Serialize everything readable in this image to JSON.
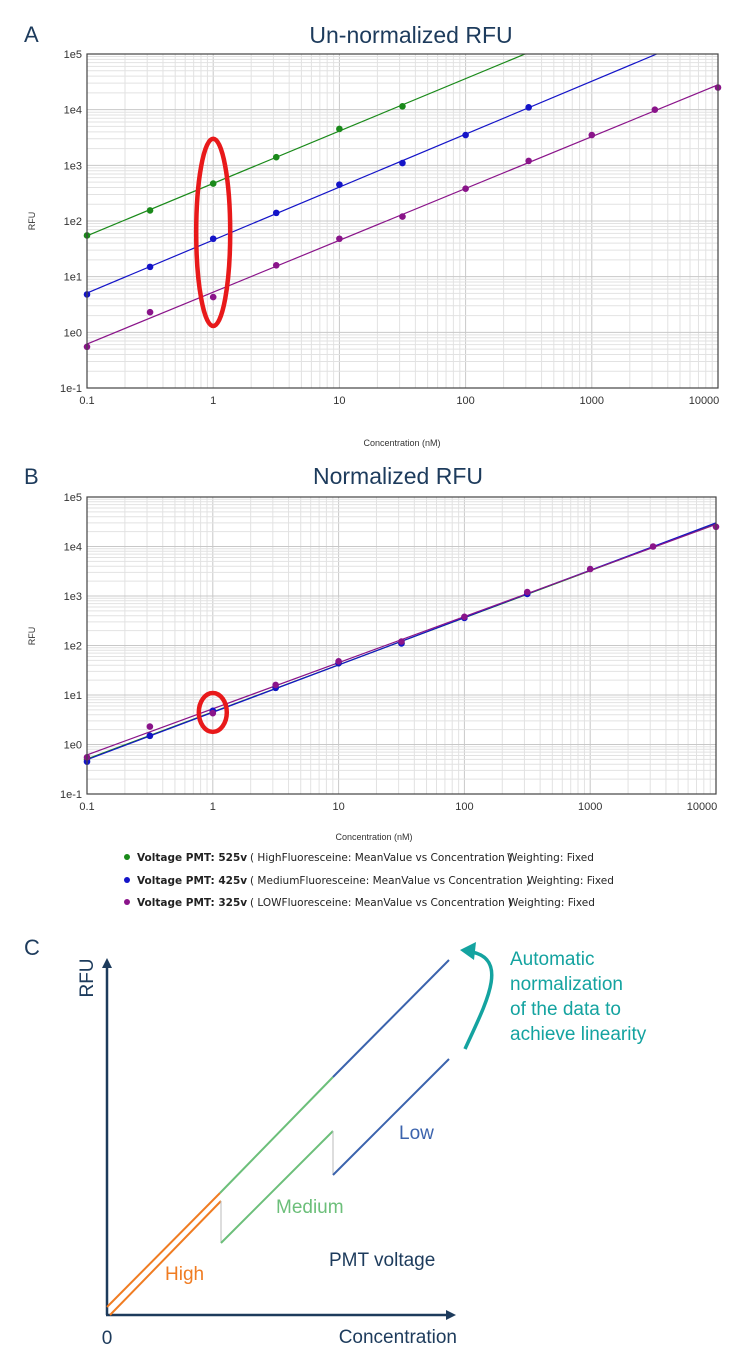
{
  "panels": {
    "a": "A",
    "b": "B",
    "c": "C"
  },
  "chart_data": [
    {
      "type": "scatter",
      "title": "Un-normalized RFU",
      "xlabel": "Concentration (nM)",
      "ylabel": "RFU",
      "xscale": "log",
      "yscale": "log",
      "xlim": [
        0.1,
        10000
      ],
      "ylim": [
        0.1,
        100000
      ],
      "xticks": [
        "0.1",
        "1",
        "10",
        "100",
        "1000",
        "10000"
      ],
      "yticks": [
        "1e-1",
        "1e0",
        "1e1",
        "1e2",
        "1e3",
        "1e4",
        "1e5"
      ],
      "grid": true,
      "fit_lines": true,
      "highlight": {
        "shape": "ellipse",
        "color": "#e8191a",
        "x": 1,
        "y_range": [
          1.3,
          3000
        ]
      },
      "series": [
        {
          "color": "#1a8a1a",
          "x": [
            0.1,
            0.316,
            1,
            3.16,
            10,
            31.6
          ],
          "y": [
            55,
            155,
            470,
            1400,
            4500,
            11500
          ]
        },
        {
          "color": "#1414c8",
          "x": [
            0.1,
            0.316,
            1,
            3.16,
            10,
            31.6,
            100,
            316
          ],
          "y": [
            4.8,
            15,
            48,
            140,
            450,
            1100,
            3500,
            11000
          ]
        },
        {
          "color": "#8a148a",
          "x": [
            0.1,
            0.316,
            1,
            3.16,
            10,
            31.6,
            100,
            316,
            1000,
            3160,
            10000
          ],
          "y": [
            0.55,
            2.3,
            4.3,
            16,
            48,
            120,
            380,
            1200,
            3500,
            10000,
            25000
          ]
        }
      ]
    },
    {
      "type": "scatter",
      "title": "Normalized RFU",
      "xlabel": "Concentration (nM)",
      "ylabel": "RFU",
      "xscale": "log",
      "yscale": "log",
      "xlim": [
        0.1,
        10000
      ],
      "ylim": [
        0.1,
        100000
      ],
      "xticks": [
        "0.1",
        "1",
        "10",
        "100",
        "1000",
        "10000"
      ],
      "yticks": [
        "1e-1",
        "1e0",
        "1e1",
        "1e2",
        "1e3",
        "1e4",
        "1e5"
      ],
      "grid": true,
      "fit_lines": true,
      "highlight": {
        "shape": "ellipse",
        "color": "#e8191a",
        "x": 1,
        "y_range": [
          1.8,
          11
        ]
      },
      "series": [
        {
          "color": "#1a8a1a",
          "x": [
            0.1,
            0.316,
            1,
            3.16,
            10,
            31.6
          ],
          "y": [
            0.5,
            1.5,
            4.6,
            14,
            44,
            112
          ]
        },
        {
          "color": "#1414c8",
          "x": [
            0.1,
            0.316,
            1,
            3.16,
            10,
            31.6,
            100,
            316
          ],
          "y": [
            0.45,
            1.5,
            4.8,
            14,
            44,
            110,
            360,
            1100
          ]
        },
        {
          "color": "#8a148a",
          "x": [
            0.1,
            0.316,
            1,
            3.16,
            10,
            31.6,
            100,
            316,
            1000,
            3160,
            10000
          ],
          "y": [
            0.55,
            2.3,
            4.3,
            16,
            48,
            120,
            380,
            1200,
            3500,
            10000,
            25000
          ]
        }
      ],
      "legend": [
        {
          "color": "#1a8a1a",
          "bold": "Voltage PMT: 525v",
          "text": "( HighFluoresceine: MeanValue vs Concentration )",
          "weighting": "Weighting: Fixed"
        },
        {
          "color": "#1414c8",
          "bold": "Voltage PMT: 425v",
          "text": "( MediumFluoresceine: MeanValue vs Concentration )",
          "weighting": "Weighting: Fixed"
        },
        {
          "color": "#8a148a",
          "bold": "Voltage PMT: 325v",
          "text": "( LOWFluoresceine: MeanValue vs Concentration )",
          "weighting": "Weighting: Fixed"
        }
      ]
    }
  ],
  "diagram": {
    "y_axis_label": "RFU",
    "x_axis_label": "Concentration",
    "origin_label": "0",
    "high_label": "High",
    "medium_label": "Medium",
    "low_label": "Low",
    "pmt_label": "PMT voltage",
    "annotation": [
      "Automatic",
      "normalization",
      "of the data to",
      "achieve linearity"
    ],
    "colors": {
      "axis": "#1d3b5c",
      "high": "#f07c22",
      "medium": "#6cbf7a",
      "low": "#3b63ad",
      "annotation": "#14a3a0"
    }
  }
}
